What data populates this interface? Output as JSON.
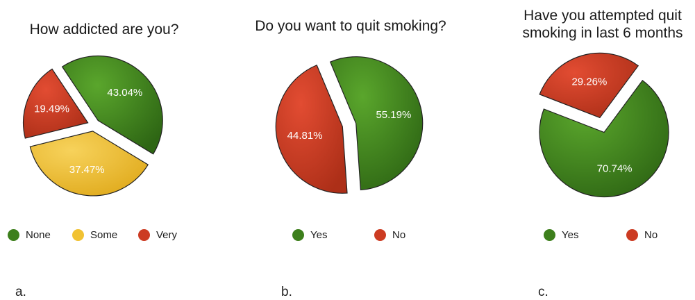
{
  "colors": {
    "green": "#3d7f1c",
    "yellow": "#f1c232",
    "red": "#cc3b22"
  },
  "chart_data": [
    {
      "type": "pie",
      "title": "How addicted are you?",
      "panel_label": "a.",
      "slices": [
        {
          "label": "None",
          "value": 43.04,
          "text": "43.04%",
          "color": "green"
        },
        {
          "label": "Some",
          "value": 37.47,
          "text": "37.47%",
          "color": "yellow"
        },
        {
          "label": "Very",
          "value": 19.49,
          "text": "19.49%",
          "color": "red"
        }
      ],
      "legend": [
        "None",
        "Some",
        "Very"
      ],
      "legend_position": "bottom"
    },
    {
      "type": "pie",
      "title": "Do you want to quit smoking?",
      "panel_label": "b.",
      "slices": [
        {
          "label": "Yes",
          "value": 55.19,
          "text": "55.19%",
          "color": "green"
        },
        {
          "label": "No",
          "value": 44.81,
          "text": "44.81%",
          "color": "red"
        }
      ],
      "legend": [
        "Yes",
        "No"
      ],
      "legend_position": "bottom"
    },
    {
      "type": "pie",
      "title_lines": [
        "Have you attempted quit",
        "smoking in last 6 months"
      ],
      "panel_label": "c.",
      "slices": [
        {
          "label": "Yes",
          "value": 70.74,
          "text": "70.74%",
          "color": "green"
        },
        {
          "label": "No",
          "value": 29.26,
          "text": "29.26%",
          "color": "red"
        }
      ],
      "legend": [
        "Yes",
        "No"
      ],
      "legend_position": "bottom"
    }
  ]
}
